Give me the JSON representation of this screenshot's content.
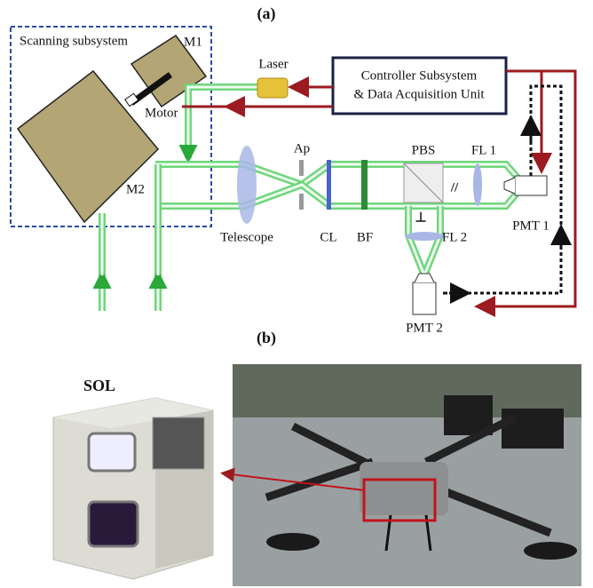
{
  "figure": {
    "panel_a": {
      "label": "(a)",
      "scanning_subsystem": "Scanning subsystem",
      "mirror_1": "M1",
      "mirror_2": "M2",
      "motor": "Motor",
      "laser": "Laser",
      "controller": {
        "line_1": "Controller Subsystem",
        "line_2": "& Data Acquisition Unit"
      },
      "components": {
        "aperture": "Ap",
        "pbs": "PBS",
        "fl1": "FL 1",
        "telescope": "Telescope",
        "cl": "CL",
        "bf": "BF",
        "fl2": "FL 2",
        "pmt1": "PMT 1",
        "pmt2": "PMT 2"
      },
      "polarization": {
        "parallel": "//",
        "perpendicular": "⊥"
      }
    },
    "panel_b": {
      "label": "(b)",
      "device": "SOL"
    }
  }
}
